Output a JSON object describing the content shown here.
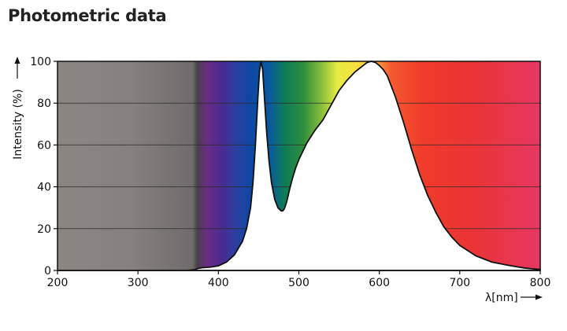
{
  "page": {
    "title": "Photometric data"
  },
  "chart_data": {
    "type": "area",
    "title": "",
    "xlabel": "λ[nm]",
    "ylabel": "Intensity (%)",
    "xlim": [
      200,
      800
    ],
    "ylim": [
      0,
      100
    ],
    "xticks": [
      200,
      300,
      400,
      500,
      600,
      700,
      800
    ],
    "yticks": [
      0,
      20,
      40,
      60,
      80,
      100
    ],
    "grid": "horizontal",
    "background": "visible light spectrum gradient (gray below ~380 nm, violet → blue → green → yellow → orange → red → pink)",
    "series": [
      {
        "x": [
          200,
          360,
          370,
          375,
          380,
          390,
          400,
          410,
          420,
          430,
          435,
          440,
          443,
          446,
          449,
          451,
          453,
          455,
          457,
          460,
          463,
          466,
          470,
          474,
          478,
          480,
          482,
          485,
          488,
          492,
          496,
          500,
          505,
          510,
          515,
          520,
          530,
          540,
          550,
          560,
          570,
          580,
          585,
          590,
          595,
          600,
          605,
          610,
          620,
          630,
          640,
          650,
          660,
          670,
          680,
          690,
          700,
          720,
          740,
          760,
          780,
          790,
          800
        ],
        "values": [
          0,
          0,
          0.3,
          1,
          1.3,
          1.6,
          2.2,
          4,
          7.5,
          14,
          20,
          30,
          42,
          60,
          82,
          95,
          100,
          96,
          84,
          66,
          52,
          42,
          34,
          30,
          28.5,
          28.5,
          29.5,
          33,
          38,
          44,
          49,
          53,
          57,
          61,
          64,
          67,
          72,
          79,
          86,
          91,
          95,
          98,
          99.5,
          100,
          99.5,
          98,
          96,
          93,
          83,
          71,
          58,
          46,
          36,
          28,
          21,
          16,
          12,
          7,
          4,
          2.5,
          1.2,
          0.8,
          0.5
        ]
      }
    ]
  }
}
